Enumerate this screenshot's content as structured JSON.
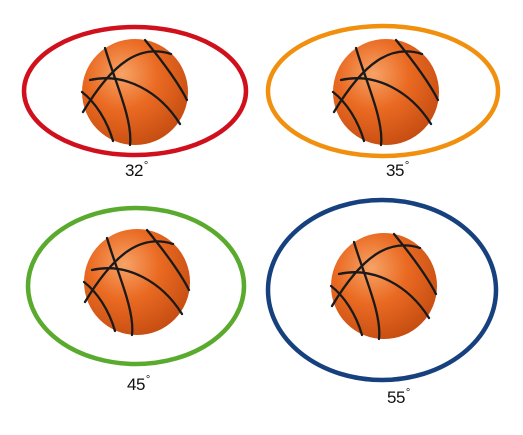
{
  "items": [
    {
      "angle_label": "32",
      "degree_symbol": "°",
      "ring_color": "#d0101c"
    },
    {
      "angle_label": "35",
      "degree_symbol": "°",
      "ring_color": "#f0900e"
    },
    {
      "angle_label": "45",
      "degree_symbol": "°",
      "ring_color": "#5aaa2e"
    },
    {
      "angle_label": "55",
      "degree_symbol": "°",
      "ring_color": "#16407e"
    }
  ],
  "ball": {
    "icon": "basketball-icon",
    "fill": "#ea6a22",
    "seam": "#1a1a1a"
  }
}
